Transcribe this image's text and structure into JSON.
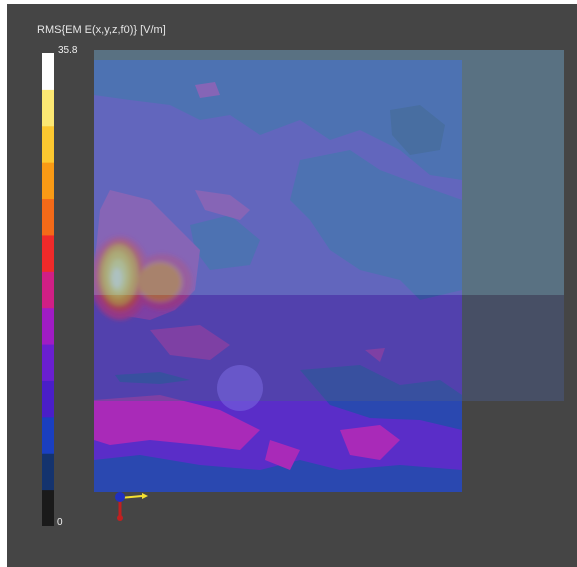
{
  "legend": {
    "title": "RMS{EM E(x,y,z,f0)} [V/m]",
    "max_label": "35.8",
    "min_label": "0",
    "colormap": [
      "#1a1a1a",
      "#14336e",
      "#1a3fc0",
      "#4a1ec8",
      "#6a1fd0",
      "#a01cc4",
      "#d01f85",
      "#f02a2a",
      "#f46a18",
      "#f99a15",
      "#fcc830",
      "#fce873",
      "#ffffff"
    ]
  },
  "colors": {
    "background": "#454545",
    "field_base": "#5a2dc8",
    "field_blue": "#2a48b0",
    "field_magenta": "#a92ab8",
    "overlay_panel": "#6a96b4"
  },
  "icons": {
    "axis_triad": "axis-triad-icon"
  }
}
